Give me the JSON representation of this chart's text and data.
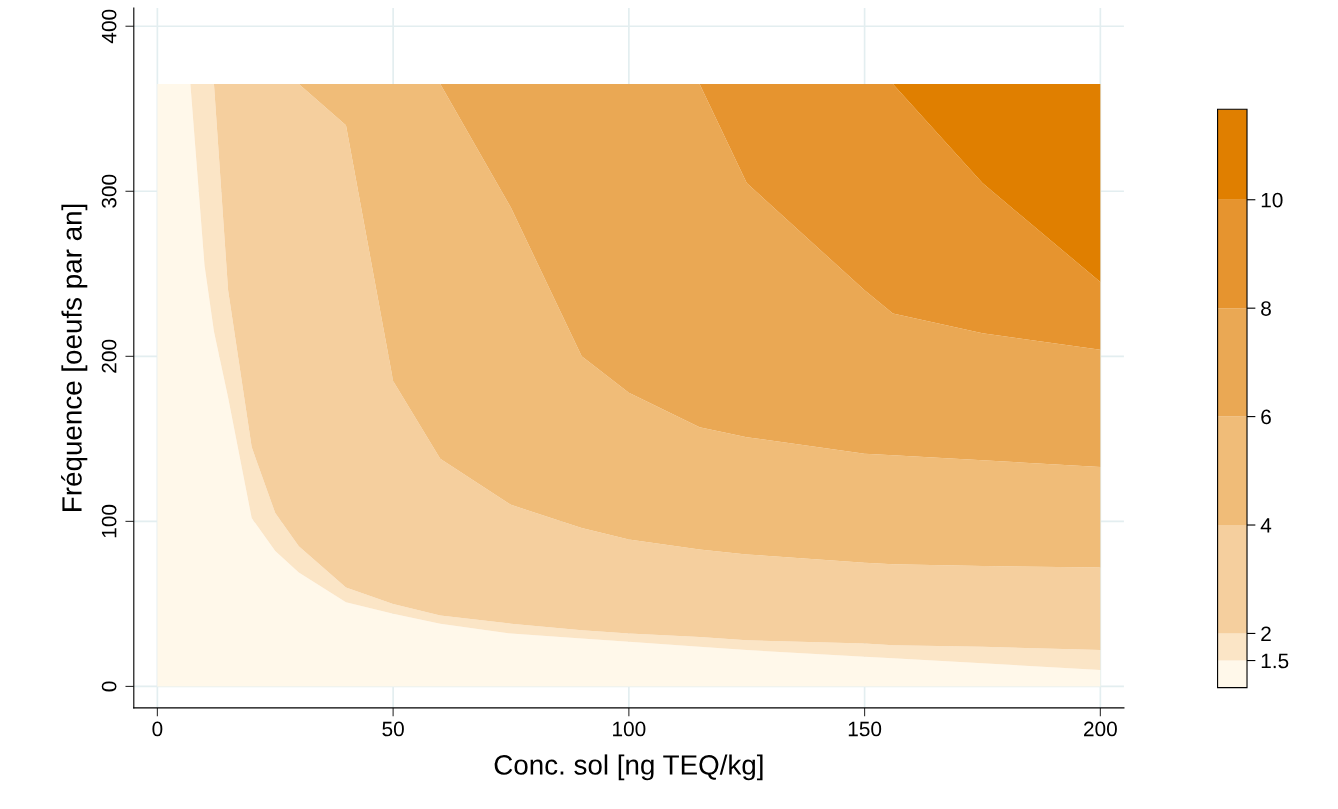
{
  "chart_data": {
    "type": "area",
    "stacked": true,
    "xlabel": "Conc. sol [ng TEQ/kg]",
    "ylabel": "Fréquence [oeufs par an]",
    "x": [
      0,
      5,
      7,
      10,
      12,
      15,
      20,
      25,
      30,
      40,
      50,
      60,
      75,
      90,
      100,
      115,
      125,
      150,
      156,
      175,
      200
    ],
    "series": [
      {
        "color": "#fff8ea",
        "values": [
          365,
          365,
          365,
          255,
          215,
          175,
          102,
          82,
          69,
          51,
          44,
          38,
          32,
          29,
          27,
          24,
          22,
          18,
          17,
          14,
          10
        ]
      },
      {
        "color": "#fbe5c6",
        "values": [
          0,
          0,
          0,
          110,
          150,
          65,
          43,
          23,
          16,
          9,
          6,
          5,
          6,
          5,
          5,
          6,
          6,
          8,
          8,
          10,
          12
        ]
      },
      {
        "color": "#f5cf9e",
        "values": [
          0,
          0,
          0,
          0,
          0,
          125,
          220,
          260,
          280,
          280,
          135,
          95,
          72,
          62,
          57,
          53,
          52,
          49,
          49,
          49,
          50
        ]
      },
      {
        "color": "#f0bc78",
        "values": [
          0,
          0,
          0,
          0,
          0,
          0,
          0,
          0,
          0,
          25,
          180,
          227,
          180,
          104,
          89,
          74,
          71,
          66,
          66,
          64,
          61
        ]
      },
      {
        "color": "#eaa854",
        "values": [
          0,
          0,
          0,
          0,
          0,
          0,
          0,
          0,
          0,
          0,
          0,
          0,
          75,
          165,
          187,
          208,
          154,
          99,
          86,
          77,
          71
        ]
      },
      {
        "color": "#e6942f",
        "values": [
          0,
          0,
          0,
          0,
          0,
          0,
          0,
          0,
          0,
          0,
          0,
          0,
          0,
          0,
          0,
          0,
          60,
          125,
          139,
          91,
          41
        ]
      },
      {
        "color": "#e07f00",
        "values": [
          0,
          0,
          0,
          0,
          0,
          0,
          0,
          0,
          0,
          0,
          0,
          0,
          0,
          0,
          0,
          0,
          0,
          0,
          0,
          60,
          120
        ]
      }
    ],
    "xlim": [
      -5,
      205
    ],
    "ylim": [
      -13,
      411
    ],
    "xticks": [
      0,
      50,
      100,
      150,
      200
    ],
    "yticks": [
      0,
      100,
      200,
      300,
      400
    ],
    "clim": [
      1,
      11.67
    ],
    "cticks": [
      1.5,
      2,
      4,
      6,
      8,
      10
    ],
    "grid": true,
    "legend": false
  }
}
